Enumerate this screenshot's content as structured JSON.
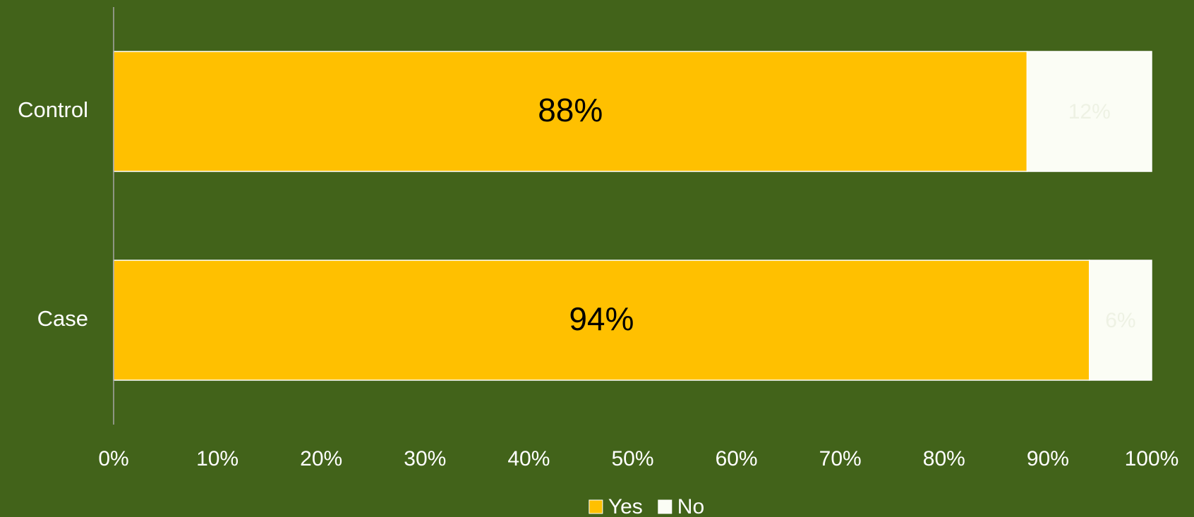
{
  "chart_data": {
    "type": "stacked-bar-horizontal",
    "categories": [
      "Control",
      "Case"
    ],
    "series": [
      {
        "name": "Yes",
        "color": "#ffc000",
        "values": [
          88,
          94
        ],
        "value_labels": [
          "88%",
          "94%"
        ]
      },
      {
        "name": "No",
        "color": "#fbfdf5",
        "values": [
          12,
          6
        ],
        "value_labels": [
          "12%",
          "6%"
        ]
      }
    ],
    "xlim": [
      0,
      100
    ],
    "xticks": [
      {
        "value": 0,
        "label": "0%"
      },
      {
        "value": 10,
        "label": "10%"
      },
      {
        "value": 20,
        "label": "20%"
      },
      {
        "value": 30,
        "label": "30%"
      },
      {
        "value": 40,
        "label": "40%"
      },
      {
        "value": 50,
        "label": "50%"
      },
      {
        "value": 60,
        "label": "60%"
      },
      {
        "value": 70,
        "label": "70%"
      },
      {
        "value": 80,
        "label": "80%"
      },
      {
        "value": 90,
        "label": "90%"
      },
      {
        "value": 100,
        "label": "100%"
      }
    ],
    "legend": "bottom",
    "grid": false
  }
}
